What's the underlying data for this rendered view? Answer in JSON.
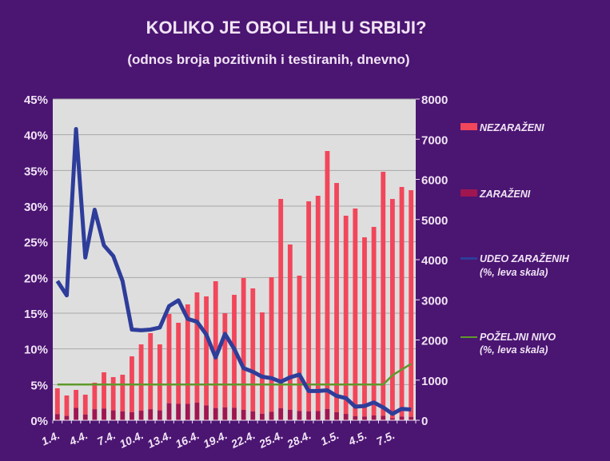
{
  "chart_data": {
    "type": "bar",
    "title": "KOLIKO JE OBOLELIH U SRBIJI?",
    "subtitle": "(odnos broja pozitivnih i testiranih, dnevno)",
    "categories": [
      "1.4.",
      "2.4.",
      "3.4.",
      "4.4.",
      "5.4.",
      "6.4.",
      "7.4.",
      "8.4.",
      "9.4.",
      "10.4.",
      "11.4.",
      "12.4.",
      "13.4.",
      "14.4.",
      "15.4.",
      "16.4.",
      "17.4.",
      "18.4.",
      "19.4.",
      "20.4.",
      "21.4.",
      "22.4.",
      "23.4.",
      "24.4.",
      "25.4.",
      "26.4.",
      "27.4.",
      "28.4.",
      "29.4.",
      "30.4.",
      "1.5.",
      "2.5.",
      "3.5.",
      "4.5.",
      "5.5.",
      "6.5.",
      "7.5.",
      "8.5.",
      "9.5."
    ],
    "x_tick_labels": [
      "1.4.",
      "4.4.",
      "7.4.",
      "10.4.",
      "13.4.",
      "16.4.",
      "19.4.",
      "22.4.",
      "25.4.",
      "28.4.",
      "1.5.",
      "4.5.",
      "7.5."
    ],
    "y_left": {
      "ylim": [
        0,
        45
      ],
      "ticks": [
        "0%",
        "5%",
        "10%",
        "15%",
        "20%",
        "25%",
        "30%",
        "35%",
        "40%",
        "45%"
      ]
    },
    "y_right": {
      "ylim": [
        0,
        8000
      ],
      "ticks": [
        "0",
        "1000",
        "2000",
        "3000",
        "4000",
        "5000",
        "6000",
        "7000",
        "8000"
      ]
    },
    "grid": true,
    "legend_position": "right",
    "series": [
      {
        "name": "NEZARAŽENI",
        "type": "stacked-bar",
        "axis": "right",
        "color": "#f2465a",
        "values": [
          641,
          509,
          448,
          492,
          659,
          901,
          828,
          913,
          1390,
          1652,
          1894,
          1644,
          2223,
          2020,
          2476,
          2745,
          2715,
          3158,
          2344,
          2812,
          3283,
          3061,
          2523,
          3352,
          5214,
          4115,
          3371,
          5229,
          5363,
          6424,
          5709,
          4937,
          5174,
          4466,
          4696,
          6078,
          5462,
          5718,
          5645
        ]
      },
      {
        "name": "ZARAŽENI",
        "type": "stacked-bar",
        "axis": "right",
        "color": "#a01650",
        "values": [
          155,
          108,
          308,
          145,
          276,
          293,
          247,
          221,
          202,
          238,
          276,
          246,
          424,
          408,
          410,
          439,
          370,
          305,
          323,
          312,
          259,
          223,
          164,
          210,
          298,
          263,
          231,
          224,
          229,
          282,
          201,
          158,
          100,
          91,
          120,
          111,
          50,
          93,
          86
        ]
      },
      {
        "name": "UDEO ZARAŽENIH",
        "name_line2": "(%, leva skala)",
        "type": "line",
        "axis": "left",
        "color": "#2e3d9a",
        "values": [
          19.5,
          17.5,
          40.8,
          22.8,
          29.5,
          24.5,
          23,
          19.5,
          12.7,
          12.6,
          12.7,
          13,
          16,
          16.8,
          14.2,
          13.8,
          12,
          8.8,
          12.1,
          10,
          7.3,
          6.8,
          6.1,
          5.9,
          5.4,
          6,
          6.4,
          4.1,
          4.1,
          4.2,
          3.4,
          3.1,
          1.9,
          2,
          2.5,
          1.8,
          0.9,
          1.6,
          1.5
        ]
      },
      {
        "name": "POŽELJNI NIVO",
        "name_line2": "(%, leva skala)",
        "type": "line",
        "axis": "left",
        "color": "#5e9a2a",
        "values": [
          5,
          5,
          5,
          5,
          5,
          5,
          5,
          5,
          5,
          5,
          5,
          5,
          5,
          5,
          5,
          5,
          5,
          5,
          5,
          5,
          5,
          5,
          5,
          5,
          5,
          5,
          5,
          5,
          5,
          5,
          5,
          5,
          5,
          5,
          5,
          5,
          6.3,
          7.1,
          7.9
        ]
      }
    ],
    "colors": {
      "background": "#4b1572",
      "plot_area": "#dedede",
      "text": "#f0e4f4",
      "gridline": "#a8a8a8"
    }
  }
}
